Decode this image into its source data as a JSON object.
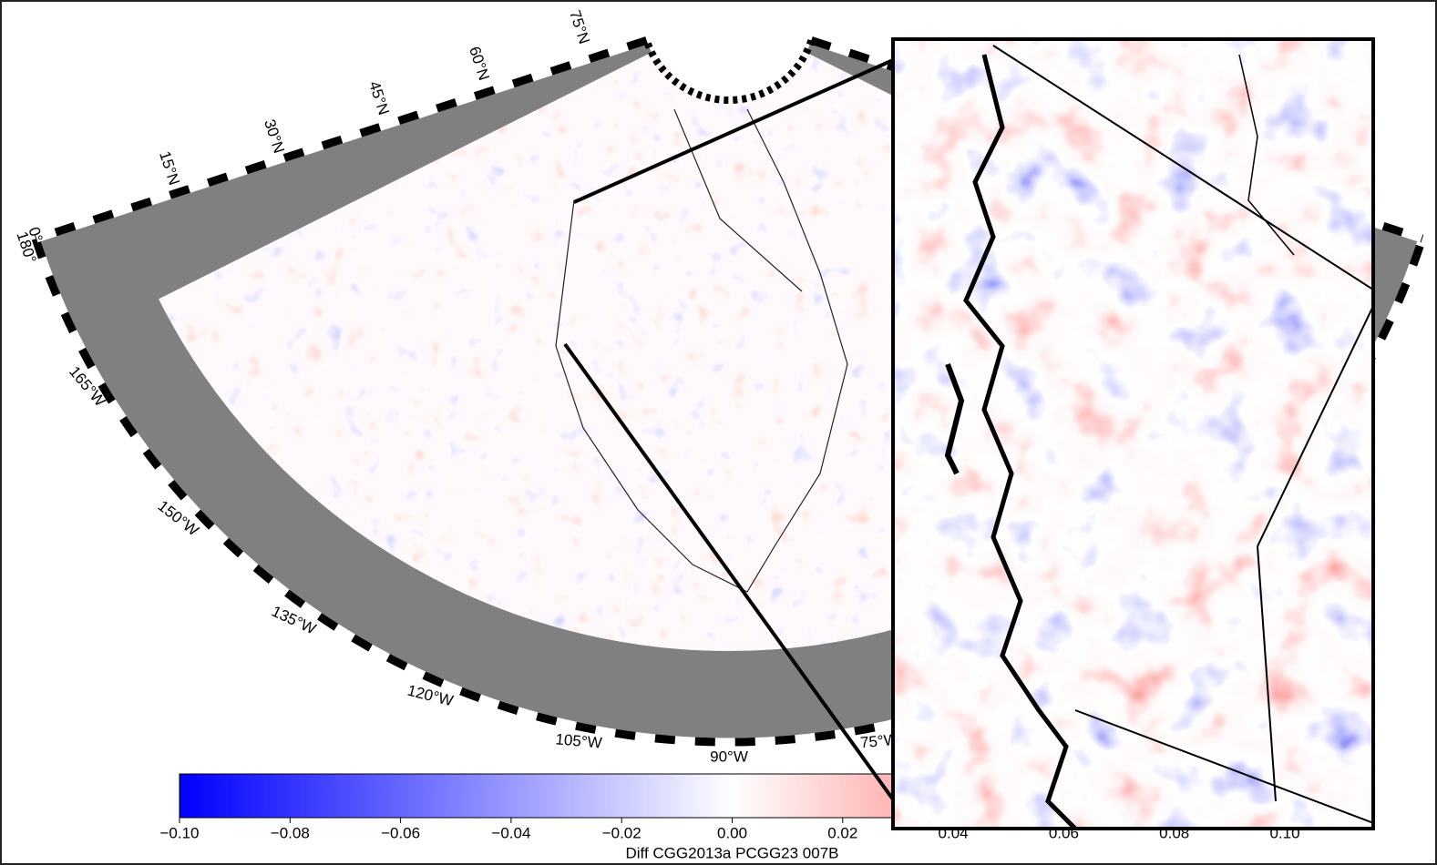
{
  "map": {
    "latitude_labels": [
      "0°",
      "15°N",
      "30°N",
      "45°N",
      "60°N",
      "75°N"
    ],
    "longitude_labels": [
      "180°",
      "165°W",
      "150°W",
      "135°W",
      "120°W",
      "105°W",
      "90°W",
      "75°W"
    ]
  },
  "colorbar": {
    "lim": [
      -0.1,
      0.1
    ],
    "ticks": [
      {
        "value": -0.1,
        "label": "−0.10"
      },
      {
        "value": -0.08,
        "label": "−0.08"
      },
      {
        "value": -0.06,
        "label": "−0.06"
      },
      {
        "value": -0.04,
        "label": "−0.04"
      },
      {
        "value": -0.02,
        "label": "−0.02"
      },
      {
        "value": 0,
        "label": "0.00"
      },
      {
        "value": 0.02,
        "label": "0.02"
      },
      {
        "value": 0.04,
        "label": "0.04"
      },
      {
        "value": 0.06,
        "label": "0.06"
      },
      {
        "value": 0.08,
        "label": "0.08"
      },
      {
        "value": 0.1,
        "label": "0.10"
      }
    ],
    "label": "Diff CGG2013a PCGG23 007B"
  }
}
